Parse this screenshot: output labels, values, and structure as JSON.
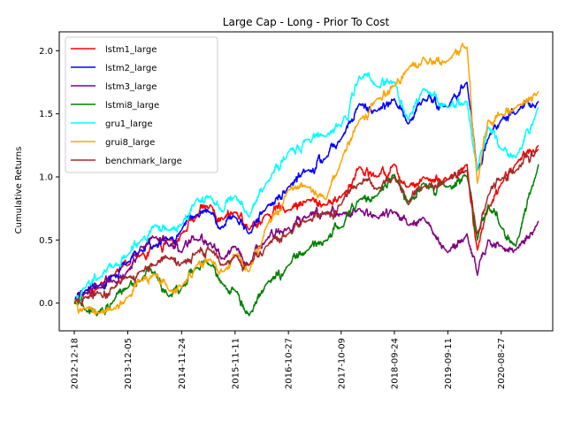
{
  "chart_data": {
    "type": "line",
    "title": "Large Cap - Long - Prior To Cost",
    "xlabel": "",
    "ylabel": "Cumulative Returns",
    "x_ticks": [
      "2012-12-18",
      "2013-12-05",
      "2014-11-24",
      "2015-11-11",
      "2016-10-27",
      "2017-10-09",
      "2018-09-24",
      "2019-09-11",
      "2020-08-27"
    ],
    "y_ticks": [
      "0.0",
      "0.5",
      "1.0",
      "1.5",
      "2.0"
    ],
    "xlim": [
      "2012-09-10",
      "2021-08-01"
    ],
    "ylim": [
      -0.22,
      2.15
    ],
    "grid": false,
    "legend_position": "top-left",
    "series": [
      {
        "name": "lstm1_large",
        "color": "#ff0000",
        "points": [
          [
            "2012-12-18",
            0.02
          ],
          [
            "2013-03-01",
            0.08
          ],
          [
            "2013-06-01",
            0.14
          ],
          [
            "2013-09-01",
            0.22
          ],
          [
            "2013-12-05",
            0.3
          ],
          [
            "2014-03-01",
            0.38
          ],
          [
            "2014-06-01",
            0.45
          ],
          [
            "2014-09-01",
            0.5
          ],
          [
            "2014-11-24",
            0.55
          ],
          [
            "2015-03-01",
            0.68
          ],
          [
            "2015-06-01",
            0.78
          ],
          [
            "2015-08-25",
            0.66
          ],
          [
            "2015-11-11",
            0.72
          ],
          [
            "2016-02-11",
            0.58
          ],
          [
            "2016-06-01",
            0.7
          ],
          [
            "2016-10-27",
            0.74
          ],
          [
            "2017-03-01",
            0.82
          ],
          [
            "2017-07-01",
            0.78
          ],
          [
            "2017-10-09",
            0.84
          ],
          [
            "2018-02-05",
            1.08
          ],
          [
            "2018-06-01",
            1.0
          ],
          [
            "2018-09-24",
            1.1
          ],
          [
            "2018-12-24",
            0.92
          ],
          [
            "2019-04-01",
            1.0
          ],
          [
            "2019-09-11",
            0.98
          ],
          [
            "2020-01-15",
            1.1
          ],
          [
            "2020-03-23",
            0.42
          ],
          [
            "2020-06-01",
            0.75
          ],
          [
            "2020-08-27",
            0.95
          ],
          [
            "2020-12-01",
            1.1
          ],
          [
            "2021-04-30",
            1.25
          ]
        ]
      },
      {
        "name": "lstm2_large",
        "color": "#0000ff",
        "points": [
          [
            "2012-12-18",
            0.02
          ],
          [
            "2013-03-01",
            0.1
          ],
          [
            "2013-06-01",
            0.14
          ],
          [
            "2013-09-01",
            0.22
          ],
          [
            "2013-12-05",
            0.32
          ],
          [
            "2014-03-01",
            0.42
          ],
          [
            "2014-06-01",
            0.45
          ],
          [
            "2014-09-01",
            0.5
          ],
          [
            "2014-11-24",
            0.58
          ],
          [
            "2015-03-01",
            0.7
          ],
          [
            "2015-06-01",
            0.72
          ],
          [
            "2015-08-25",
            0.6
          ],
          [
            "2015-11-11",
            0.68
          ],
          [
            "2016-02-11",
            0.55
          ],
          [
            "2016-06-01",
            0.75
          ],
          [
            "2016-10-27",
            0.92
          ],
          [
            "2017-03-01",
            1.05
          ],
          [
            "2017-07-01",
            1.15
          ],
          [
            "2017-10-09",
            1.3
          ],
          [
            "2018-02-05",
            1.58
          ],
          [
            "2018-06-01",
            1.52
          ],
          [
            "2018-09-24",
            1.62
          ],
          [
            "2018-12-24",
            1.42
          ],
          [
            "2019-04-01",
            1.62
          ],
          [
            "2019-09-11",
            1.55
          ],
          [
            "2020-01-15",
            1.75
          ],
          [
            "2020-03-23",
            1.05
          ],
          [
            "2020-06-01",
            1.3
          ],
          [
            "2020-08-27",
            1.45
          ],
          [
            "2020-12-01",
            1.5
          ],
          [
            "2021-04-30",
            1.6
          ]
        ]
      },
      {
        "name": "lstm3_large",
        "color": "#800080",
        "points": [
          [
            "2012-12-18",
            0.0
          ],
          [
            "2013-03-01",
            0.08
          ],
          [
            "2013-06-01",
            0.12
          ],
          [
            "2013-09-01",
            0.18
          ],
          [
            "2013-12-05",
            0.25
          ],
          [
            "2014-03-01",
            0.45
          ],
          [
            "2014-06-01",
            0.52
          ],
          [
            "2014-09-01",
            0.45
          ],
          [
            "2014-11-24",
            0.4
          ],
          [
            "2015-03-01",
            0.5
          ],
          [
            "2015-06-01",
            0.48
          ],
          [
            "2015-08-25",
            0.35
          ],
          [
            "2015-11-11",
            0.45
          ],
          [
            "2016-02-11",
            0.3
          ],
          [
            "2016-06-01",
            0.5
          ],
          [
            "2016-10-27",
            0.6
          ],
          [
            "2017-03-01",
            0.68
          ],
          [
            "2017-07-01",
            0.72
          ],
          [
            "2017-10-09",
            0.7
          ],
          [
            "2018-02-05",
            0.75
          ],
          [
            "2018-06-01",
            0.68
          ],
          [
            "2018-09-24",
            0.72
          ],
          [
            "2018-12-24",
            0.62
          ],
          [
            "2019-04-01",
            0.68
          ],
          [
            "2019-09-11",
            0.4
          ],
          [
            "2020-01-15",
            0.55
          ],
          [
            "2020-03-23",
            0.22
          ],
          [
            "2020-06-01",
            0.5
          ],
          [
            "2020-08-27",
            0.45
          ],
          [
            "2020-12-01",
            0.42
          ],
          [
            "2021-04-30",
            0.65
          ]
        ]
      },
      {
        "name": "lstmi8_large",
        "color": "#008000",
        "points": [
          [
            "2012-12-18",
            0.0
          ],
          [
            "2013-03-01",
            -0.05
          ],
          [
            "2013-05-15",
            -0.1
          ],
          [
            "2013-09-01",
            0.02
          ],
          [
            "2013-12-05",
            0.12
          ],
          [
            "2014-03-01",
            0.18
          ],
          [
            "2014-06-01",
            0.25
          ],
          [
            "2014-09-01",
            0.05
          ],
          [
            "2014-11-24",
            0.12
          ],
          [
            "2015-03-01",
            0.28
          ],
          [
            "2015-06-01",
            0.3
          ],
          [
            "2015-08-25",
            0.15
          ],
          [
            "2015-11-11",
            0.1
          ],
          [
            "2016-02-11",
            -0.1
          ],
          [
            "2016-06-01",
            0.15
          ],
          [
            "2016-10-27",
            0.3
          ],
          [
            "2017-03-01",
            0.42
          ],
          [
            "2017-07-01",
            0.5
          ],
          [
            "2017-10-09",
            0.6
          ],
          [
            "2018-02-05",
            0.82
          ],
          [
            "2018-06-01",
            0.85
          ],
          [
            "2018-09-24",
            1.02
          ],
          [
            "2018-12-24",
            0.8
          ],
          [
            "2019-04-01",
            0.95
          ],
          [
            "2019-09-11",
            0.92
          ],
          [
            "2020-01-15",
            1.0
          ],
          [
            "2020-03-23",
            0.5
          ],
          [
            "2020-06-01",
            0.78
          ],
          [
            "2020-08-27",
            0.6
          ],
          [
            "2020-12-01",
            0.45
          ],
          [
            "2021-04-30",
            1.1
          ]
        ]
      },
      {
        "name": "gru1_large",
        "color": "#00ffff",
        "points": [
          [
            "2012-12-18",
            0.02
          ],
          [
            "2013-03-01",
            0.12
          ],
          [
            "2013-06-01",
            0.2
          ],
          [
            "2013-09-01",
            0.28
          ],
          [
            "2013-12-05",
            0.38
          ],
          [
            "2014-03-01",
            0.5
          ],
          [
            "2014-06-01",
            0.62
          ],
          [
            "2014-09-01",
            0.58
          ],
          [
            "2014-11-24",
            0.62
          ],
          [
            "2015-03-01",
            0.82
          ],
          [
            "2015-06-01",
            0.85
          ],
          [
            "2015-08-25",
            0.72
          ],
          [
            "2015-11-11",
            0.85
          ],
          [
            "2016-02-11",
            0.68
          ],
          [
            "2016-06-01",
            0.95
          ],
          [
            "2016-10-27",
            1.2
          ],
          [
            "2017-03-01",
            1.3
          ],
          [
            "2017-07-01",
            1.32
          ],
          [
            "2017-10-09",
            1.4
          ],
          [
            "2018-02-05",
            1.8
          ],
          [
            "2018-06-01",
            1.72
          ],
          [
            "2018-09-24",
            1.75
          ],
          [
            "2018-12-24",
            1.45
          ],
          [
            "2019-04-01",
            1.7
          ],
          [
            "2019-09-11",
            1.55
          ],
          [
            "2020-01-15",
            1.6
          ],
          [
            "2020-03-23",
            1.05
          ],
          [
            "2020-06-01",
            1.4
          ],
          [
            "2020-08-27",
            1.22
          ],
          [
            "2020-12-01",
            1.15
          ],
          [
            "2021-04-30",
            1.55
          ]
        ]
      },
      {
        "name": "grui8_large",
        "color": "#ffa500",
        "points": [
          [
            "2012-12-18",
            0.02
          ],
          [
            "2013-03-01",
            -0.05
          ],
          [
            "2013-06-01",
            -0.08
          ],
          [
            "2013-09-01",
            -0.05
          ],
          [
            "2013-12-05",
            0.05
          ],
          [
            "2014-03-01",
            0.18
          ],
          [
            "2014-06-01",
            0.22
          ],
          [
            "2014-09-01",
            0.1
          ],
          [
            "2014-11-24",
            0.12
          ],
          [
            "2015-03-01",
            0.3
          ],
          [
            "2015-06-01",
            0.35
          ],
          [
            "2015-08-25",
            0.25
          ],
          [
            "2015-11-11",
            0.38
          ],
          [
            "2016-02-11",
            0.25
          ],
          [
            "2016-06-01",
            0.6
          ],
          [
            "2016-10-27",
            0.9
          ],
          [
            "2017-03-01",
            0.92
          ],
          [
            "2017-07-01",
            0.82
          ],
          [
            "2017-10-09",
            1.12
          ],
          [
            "2018-02-05",
            1.45
          ],
          [
            "2018-06-01",
            1.62
          ],
          [
            "2018-09-24",
            1.72
          ],
          [
            "2018-12-24",
            1.85
          ],
          [
            "2019-04-01",
            1.95
          ],
          [
            "2019-09-11",
            1.92
          ],
          [
            "2020-01-15",
            2.03
          ],
          [
            "2020-03-23",
            0.95
          ],
          [
            "2020-06-01",
            1.45
          ],
          [
            "2020-08-27",
            1.5
          ],
          [
            "2020-12-01",
            1.55
          ],
          [
            "2021-04-30",
            1.68
          ]
        ]
      },
      {
        "name": "benchmark_large",
        "color": "#a52a2a",
        "points": [
          [
            "2012-12-18",
            0.0
          ],
          [
            "2013-03-01",
            0.05
          ],
          [
            "2013-06-01",
            0.08
          ],
          [
            "2013-09-01",
            0.12
          ],
          [
            "2013-12-05",
            0.2
          ],
          [
            "2014-03-01",
            0.25
          ],
          [
            "2014-06-01",
            0.3
          ],
          [
            "2014-09-01",
            0.35
          ],
          [
            "2014-11-24",
            0.32
          ],
          [
            "2015-03-01",
            0.4
          ],
          [
            "2015-06-01",
            0.42
          ],
          [
            "2015-08-25",
            0.3
          ],
          [
            "2015-11-11",
            0.38
          ],
          [
            "2016-02-11",
            0.3
          ],
          [
            "2016-06-01",
            0.45
          ],
          [
            "2016-10-27",
            0.55
          ],
          [
            "2017-03-01",
            0.65
          ],
          [
            "2017-07-01",
            0.7
          ],
          [
            "2017-10-09",
            0.78
          ],
          [
            "2018-02-05",
            0.95
          ],
          [
            "2018-06-01",
            0.9
          ],
          [
            "2018-09-24",
            1.0
          ],
          [
            "2018-12-24",
            0.78
          ],
          [
            "2019-04-01",
            0.92
          ],
          [
            "2019-09-11",
            0.98
          ],
          [
            "2020-01-15",
            1.05
          ],
          [
            "2020-03-23",
            0.55
          ],
          [
            "2020-06-01",
            0.85
          ],
          [
            "2020-08-27",
            0.98
          ],
          [
            "2020-12-01",
            1.05
          ],
          [
            "2021-04-30",
            1.22
          ]
        ]
      }
    ]
  }
}
